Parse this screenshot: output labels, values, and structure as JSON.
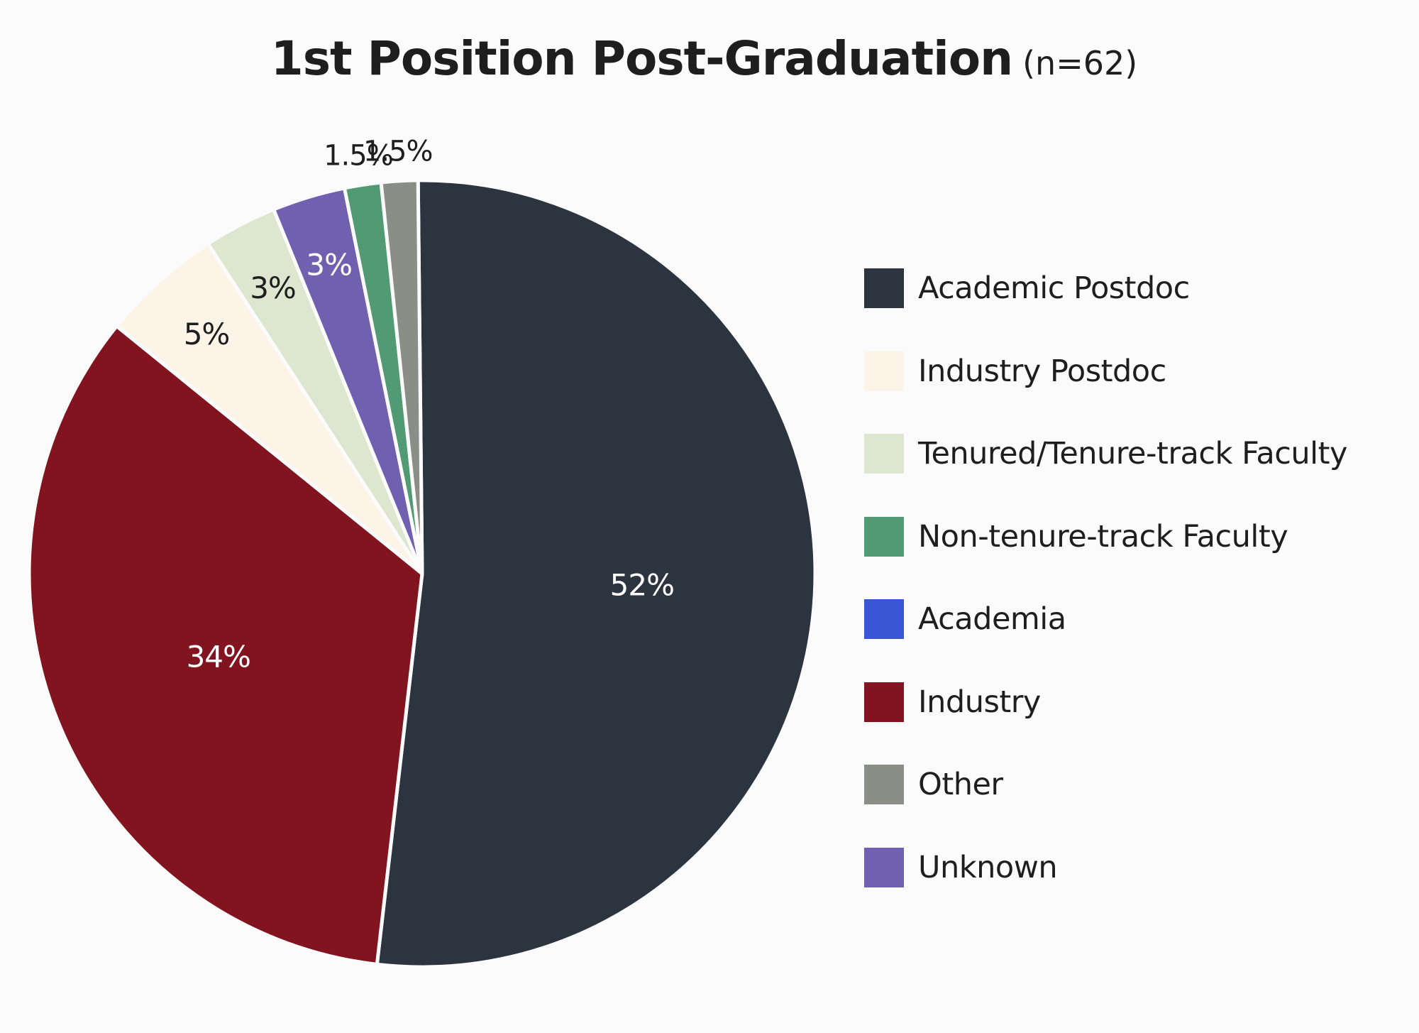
{
  "chart_data": {
    "type": "pie",
    "title": "1st Position Post-Graduation",
    "subtitle": "(n=62)",
    "legend_position": "right",
    "categories": [
      "Academic Postdoc",
      "Industry Postdoc",
      "Tenured/Tenure-track Faculty",
      "Non-tenure-track Faculty",
      "Academia",
      "Industry",
      "Other",
      "Unknown"
    ],
    "colors": [
      "#2c353f",
      "#fdf4e8",
      "#dde6cf",
      "#529a73",
      "#3a55d6",
      "#82141f",
      "#8b8e86",
      "#715fb0"
    ],
    "slices": [
      {
        "name": "Academic Postdoc",
        "value": 52,
        "label": "52%",
        "color": "#2c353f",
        "label_color": "#ffffff"
      },
      {
        "name": "Industry",
        "value": 34,
        "label": "34%",
        "color": "#82141f",
        "label_color": "#ffffff"
      },
      {
        "name": "Industry Postdoc",
        "value": 5,
        "label": "5%",
        "color": "#fdf4e8",
        "label_color": "#1e1e1e"
      },
      {
        "name": "Tenured/Tenure-track Faculty",
        "value": 3,
        "label": "3%",
        "color": "#dde6cf",
        "label_color": "#1e1e1e"
      },
      {
        "name": "Unknown",
        "value": 3,
        "label": "3%",
        "color": "#715fb0",
        "label_color": "#ffffff"
      },
      {
        "name": "Non-tenure-track Faculty",
        "value": 1.5,
        "label": "1.5%",
        "color": "#529a73",
        "label_color": "#1e1e1e"
      },
      {
        "name": "Other",
        "value": 1.5,
        "label": "1.5%",
        "color": "#8b8e86",
        "label_color": "#1e1e1e"
      }
    ]
  }
}
